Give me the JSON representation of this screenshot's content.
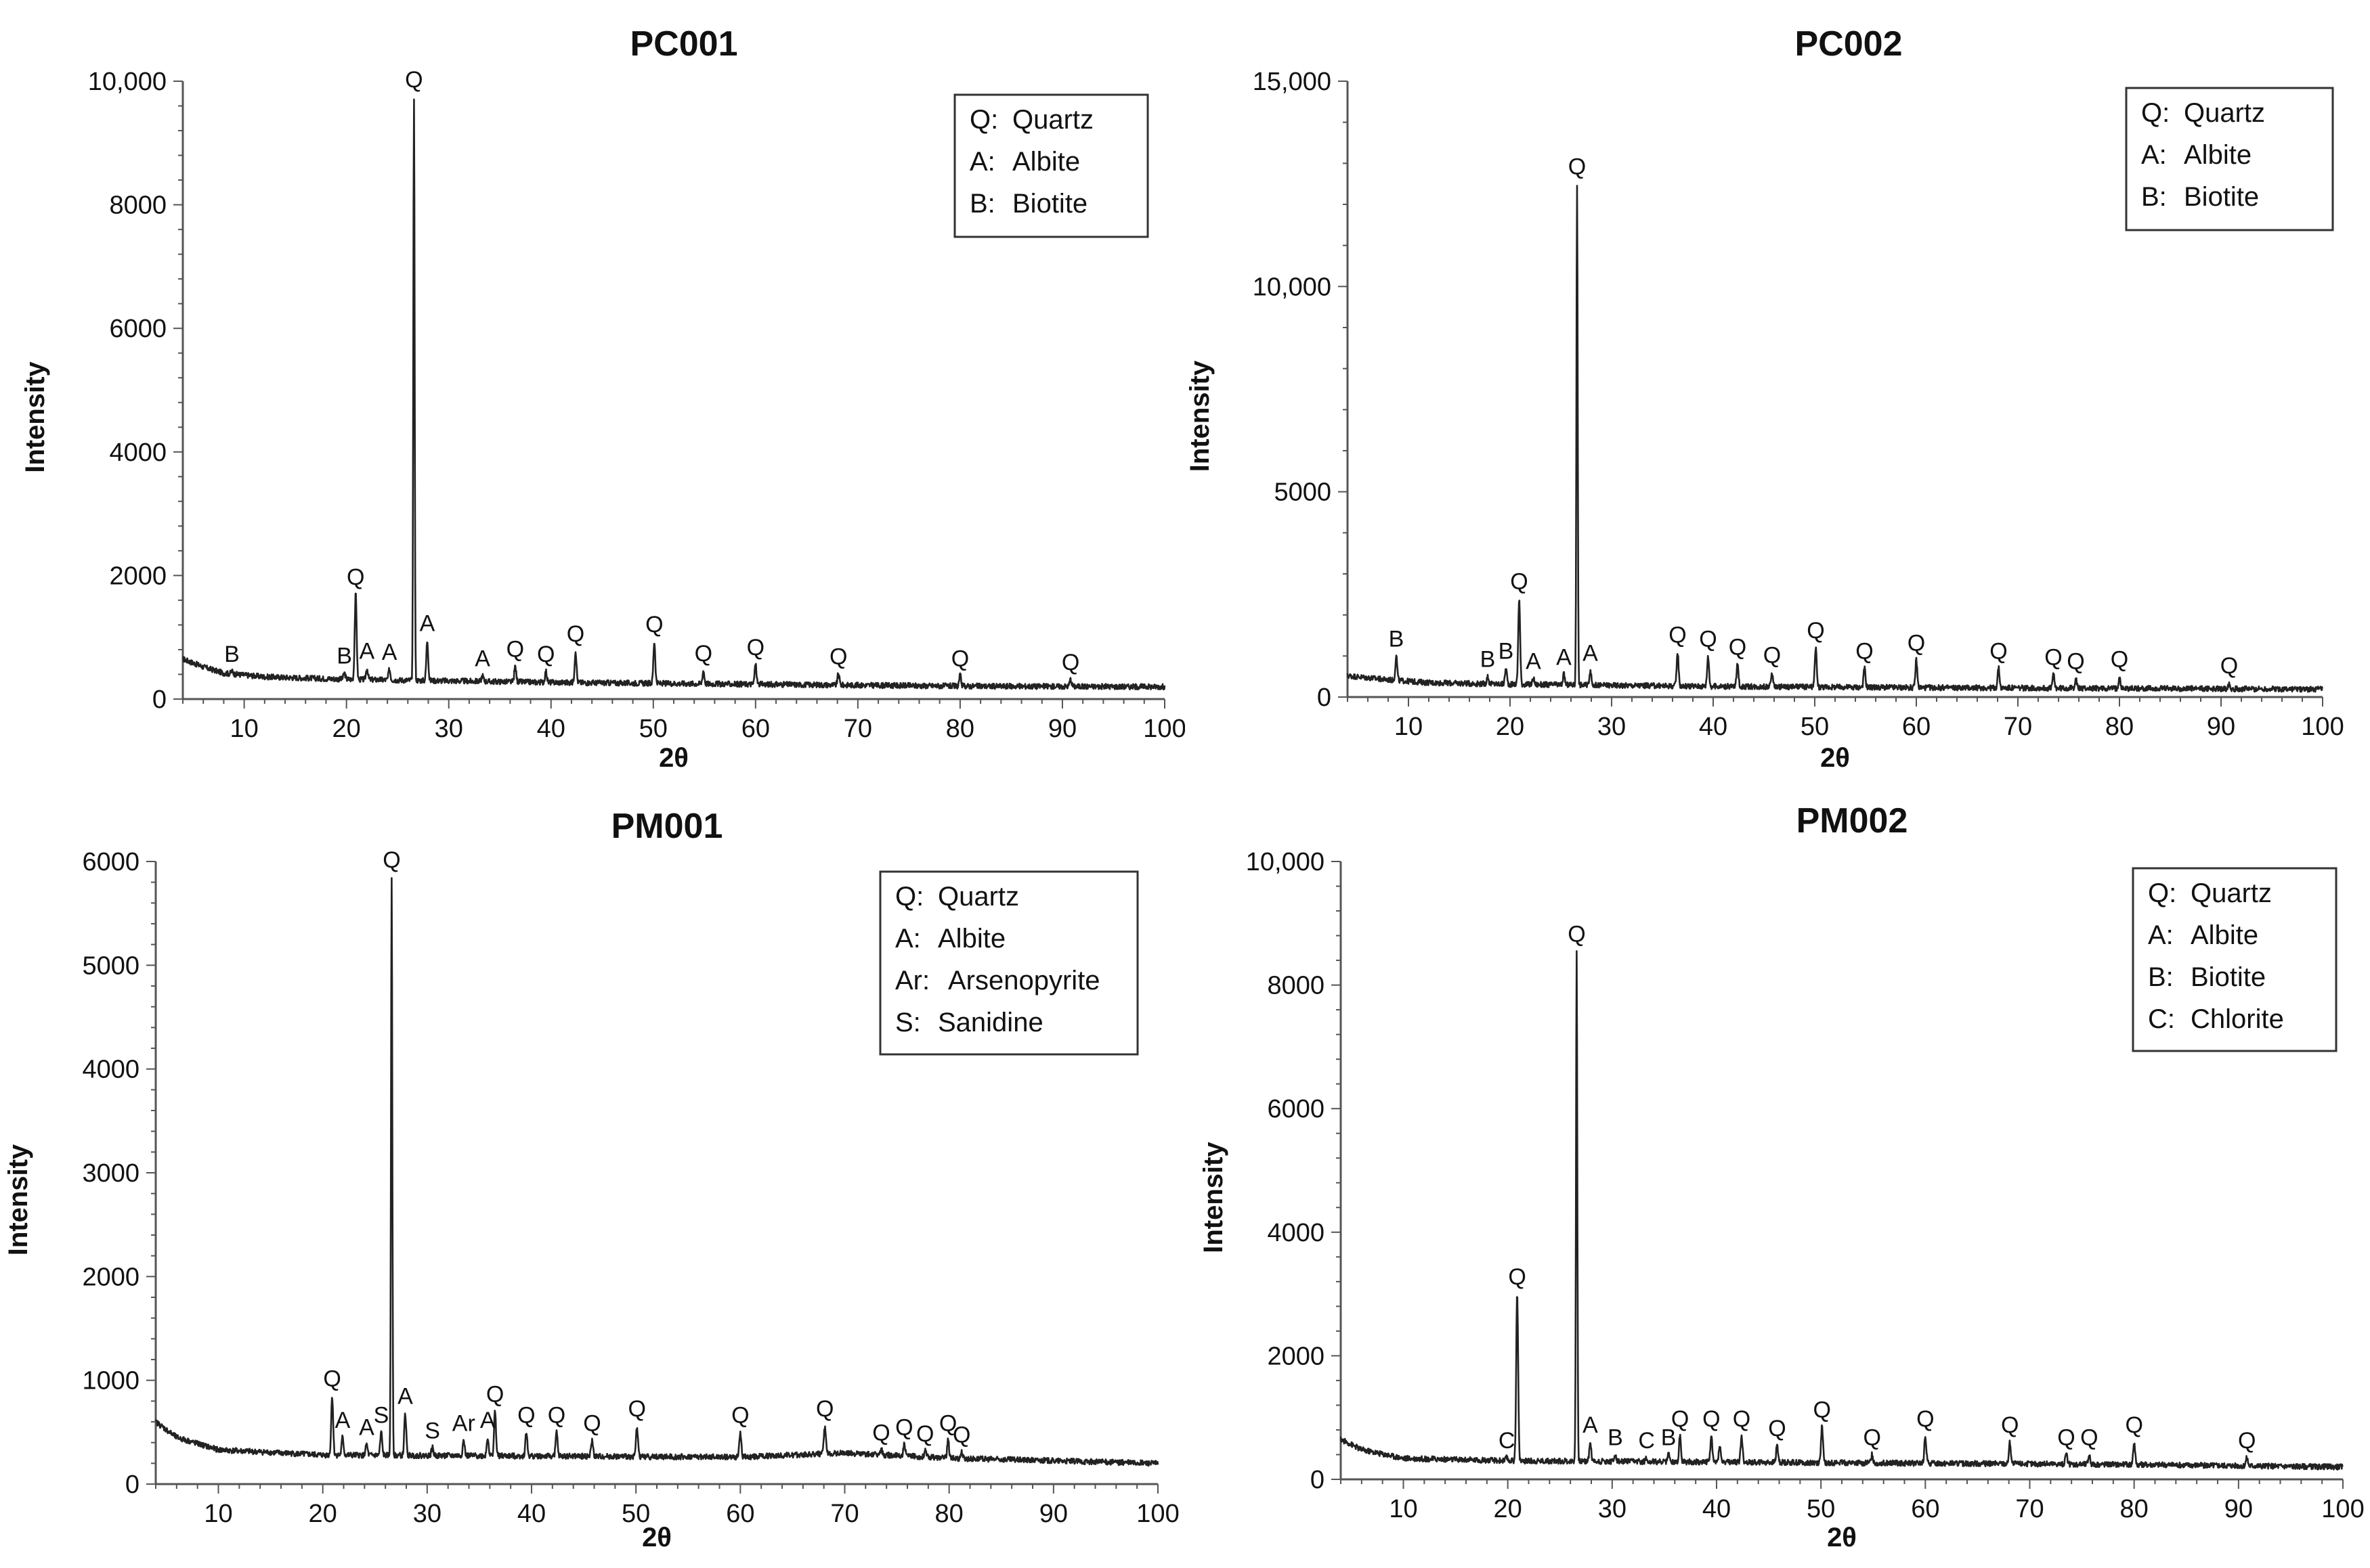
{
  "chart_data": [
    {
      "type": "line",
      "title": "PC001",
      "xlabel": "2θ",
      "ylabel": "Intensity",
      "xlim": [
        4,
        100
      ],
      "ylim": [
        0,
        10000
      ],
      "yticks": [
        0,
        2000,
        4000,
        6000,
        8000,
        10000
      ],
      "ytick_labels": [
        "0",
        "2000",
        "4000",
        "6000",
        "8000",
        "10,000"
      ],
      "xticks": [
        10,
        20,
        30,
        40,
        50,
        60,
        70,
        80,
        90,
        100
      ],
      "xtick_labels": [
        "10",
        "20",
        "30",
        "40",
        "50",
        "60",
        "70",
        "80",
        "90",
        "100"
      ],
      "legend": [
        {
          "code": "Q:",
          "mineral": "Quartz"
        },
        {
          "code": "A:",
          "mineral": "Albite"
        },
        {
          "code": "B:",
          "mineral": "Biotite"
        }
      ],
      "legend_position": "top-right",
      "baseline": [
        [
          4,
          650
        ],
        [
          6,
          520
        ],
        [
          8,
          420
        ],
        [
          12,
          360
        ],
        [
          20,
          320
        ],
        [
          40,
          270
        ],
        [
          60,
          240
        ],
        [
          80,
          210
        ],
        [
          100,
          200
        ]
      ],
      "peaks": [
        {
          "x": 8.8,
          "y": 450,
          "label": "B"
        },
        {
          "x": 19.8,
          "y": 420,
          "label": "B"
        },
        {
          "x": 20.9,
          "y": 1700,
          "label": "Q"
        },
        {
          "x": 22.0,
          "y": 500,
          "label": "A"
        },
        {
          "x": 24.2,
          "y": 480,
          "label": "A"
        },
        {
          "x": 26.6,
          "y": 9750,
          "label": "Q"
        },
        {
          "x": 27.9,
          "y": 950,
          "label": "A"
        },
        {
          "x": 33.3,
          "y": 380,
          "label": "A"
        },
        {
          "x": 36.5,
          "y": 530,
          "label": "Q"
        },
        {
          "x": 39.5,
          "y": 450,
          "label": "Q"
        },
        {
          "x": 42.4,
          "y": 780,
          "label": "Q"
        },
        {
          "x": 50.1,
          "y": 930,
          "label": "Q"
        },
        {
          "x": 54.9,
          "y": 460,
          "label": "Q"
        },
        {
          "x": 60.0,
          "y": 560,
          "label": "Q"
        },
        {
          "x": 68.1,
          "y": 410,
          "label": "Q"
        },
        {
          "x": 80.0,
          "y": 380,
          "label": "Q"
        },
        {
          "x": 90.8,
          "y": 320,
          "label": "Q"
        }
      ]
    },
    {
      "type": "line",
      "title": "PC002",
      "xlabel": "2θ",
      "ylabel": "Intensity",
      "xlim": [
        4,
        100
      ],
      "ylim": [
        0,
        15000
      ],
      "yticks": [
        0,
        5000,
        10000,
        15000
      ],
      "ytick_labels": [
        "0",
        "5000",
        "10,000",
        "15,000"
      ],
      "xticks": [
        10,
        20,
        30,
        40,
        50,
        60,
        70,
        80,
        90,
        100
      ],
      "xtick_labels": [
        "10",
        "20",
        "30",
        "40",
        "50",
        "60",
        "70",
        "80",
        "90",
        "100"
      ],
      "legend": [
        {
          "code": "Q:",
          "mineral": "Quartz"
        },
        {
          "code": "A:",
          "mineral": "Albite"
        },
        {
          "code": "B:",
          "mineral": "Biotite"
        }
      ],
      "legend_position": "top-right",
      "baseline": [
        [
          4,
          520
        ],
        [
          8,
          420
        ],
        [
          12,
          350
        ],
        [
          20,
          310
        ],
        [
          40,
          260
        ],
        [
          60,
          230
        ],
        [
          80,
          210
        ],
        [
          100,
          190
        ]
      ],
      "peaks": [
        {
          "x": 8.8,
          "y": 1000,
          "label": "B"
        },
        {
          "x": 17.8,
          "y": 500,
          "label": "B"
        },
        {
          "x": 19.6,
          "y": 700,
          "label": "B"
        },
        {
          "x": 20.9,
          "y": 2400,
          "label": "Q"
        },
        {
          "x": 22.3,
          "y": 450,
          "label": "A"
        },
        {
          "x": 25.3,
          "y": 550,
          "label": "A"
        },
        {
          "x": 26.6,
          "y": 12500,
          "label": "Q"
        },
        {
          "x": 27.9,
          "y": 650,
          "label": "A"
        },
        {
          "x": 36.5,
          "y": 1100,
          "label": "Q"
        },
        {
          "x": 39.5,
          "y": 1000,
          "label": "Q"
        },
        {
          "x": 42.4,
          "y": 800,
          "label": "Q"
        },
        {
          "x": 45.8,
          "y": 600,
          "label": "Q"
        },
        {
          "x": 50.1,
          "y": 1200,
          "label": "Q"
        },
        {
          "x": 54.9,
          "y": 700,
          "label": "Q"
        },
        {
          "x": 60.0,
          "y": 900,
          "label": "Q"
        },
        {
          "x": 68.1,
          "y": 700,
          "label": "Q"
        },
        {
          "x": 73.5,
          "y": 550,
          "label": "Q"
        },
        {
          "x": 75.7,
          "y": 450,
          "label": "Q"
        },
        {
          "x": 80.0,
          "y": 500,
          "label": "Q"
        },
        {
          "x": 90.8,
          "y": 350,
          "label": "Q"
        }
      ]
    },
    {
      "type": "line",
      "title": "PM001",
      "xlabel": "2θ",
      "ylabel": "Intensity",
      "xlim": [
        4,
        100
      ],
      "ylim": [
        0,
        6000
      ],
      "yticks": [
        0,
        1000,
        2000,
        3000,
        4000,
        5000,
        6000
      ],
      "ytick_labels": [
        "0",
        "1000",
        "2000",
        "3000",
        "4000",
        "5000",
        "6000"
      ],
      "xticks": [
        10,
        20,
        30,
        40,
        50,
        60,
        70,
        80,
        90,
        100
      ],
      "xtick_labels": [
        "10",
        "20",
        "30",
        "40",
        "50",
        "60",
        "70",
        "80",
        "90",
        "100"
      ],
      "legend": [
        {
          "code": "Q:",
          "mineral": "Quartz"
        },
        {
          "code": "A:",
          "mineral": "Albite"
        },
        {
          "code": "Ar:",
          "mineral": "Arsenopyrite"
        },
        {
          "code": "S:",
          "mineral": "Sanidine"
        }
      ],
      "legend_position": "top-right",
      "baseline": [
        [
          4,
          600
        ],
        [
          6,
          450
        ],
        [
          10,
          330
        ],
        [
          20,
          280
        ],
        [
          40,
          270
        ],
        [
          60,
          260
        ],
        [
          70,
          300
        ],
        [
          80,
          250
        ],
        [
          100,
          200
        ]
      ],
      "peaks": [
        {
          "x": 20.9,
          "y": 850,
          "label": "Q"
        },
        {
          "x": 21.9,
          "y": 450,
          "label": "A"
        },
        {
          "x": 24.2,
          "y": 380,
          "label": "A"
        },
        {
          "x": 25.6,
          "y": 500,
          "label": "S"
        },
        {
          "x": 26.6,
          "y": 5850,
          "label": "Q"
        },
        {
          "x": 27.9,
          "y": 680,
          "label": "A"
        },
        {
          "x": 30.5,
          "y": 350,
          "label": "S"
        },
        {
          "x": 33.5,
          "y": 420,
          "label": "Ar"
        },
        {
          "x": 35.8,
          "y": 450,
          "label": "A"
        },
        {
          "x": 36.5,
          "y": 700,
          "label": "Q"
        },
        {
          "x": 39.5,
          "y": 500,
          "label": "Q"
        },
        {
          "x": 42.4,
          "y": 500,
          "label": "Q"
        },
        {
          "x": 45.8,
          "y": 420,
          "label": "Q"
        },
        {
          "x": 50.1,
          "y": 560,
          "label": "Q"
        },
        {
          "x": 60.0,
          "y": 500,
          "label": "Q"
        },
        {
          "x": 68.1,
          "y": 560,
          "label": "Q"
        },
        {
          "x": 73.5,
          "y": 330,
          "label": "Q"
        },
        {
          "x": 75.7,
          "y": 380,
          "label": "Q"
        },
        {
          "x": 77.7,
          "y": 320,
          "label": "Q"
        },
        {
          "x": 79.9,
          "y": 420,
          "label": "Q"
        },
        {
          "x": 81.2,
          "y": 310,
          "label": "Q"
        }
      ]
    },
    {
      "type": "line",
      "title": "PM002",
      "xlabel": "2θ",
      "ylabel": "Intensity",
      "xlim": [
        4,
        100
      ],
      "ylim": [
        0,
        10000
      ],
      "yticks": [
        0,
        2000,
        4000,
        6000,
        8000,
        10000
      ],
      "ytick_labels": [
        "0",
        "2000",
        "4000",
        "6000",
        "8000",
        "10,000"
      ],
      "xticks": [
        10,
        20,
        30,
        40,
        50,
        60,
        70,
        80,
        90,
        100
      ],
      "xtick_labels": [
        "10",
        "20",
        "30",
        "40",
        "50",
        "60",
        "70",
        "80",
        "90",
        "100"
      ],
      "legend": [
        {
          "code": "Q:",
          "mineral": "Quartz"
        },
        {
          "code": "A:",
          "mineral": "Albite"
        },
        {
          "code": "B:",
          "mineral": "Biotite"
        },
        {
          "code": "C:",
          "mineral": "Chlorite"
        }
      ],
      "legend_position": "top-right",
      "baseline": [
        [
          4,
          650
        ],
        [
          6,
          480
        ],
        [
          10,
          340
        ],
        [
          20,
          300
        ],
        [
          40,
          280
        ],
        [
          60,
          260
        ],
        [
          80,
          240
        ],
        [
          100,
          200
        ]
      ],
      "peaks": [
        {
          "x": 19.9,
          "y": 350,
          "label": "C"
        },
        {
          "x": 20.9,
          "y": 3000,
          "label": "Q"
        },
        {
          "x": 26.6,
          "y": 8550,
          "label": "Q"
        },
        {
          "x": 27.9,
          "y": 600,
          "label": "A"
        },
        {
          "x": 30.3,
          "y": 400,
          "label": "B"
        },
        {
          "x": 33.3,
          "y": 350,
          "label": "C"
        },
        {
          "x": 35.4,
          "y": 400,
          "label": "B"
        },
        {
          "x": 36.5,
          "y": 700,
          "label": "Q"
        },
        {
          "x": 39.5,
          "y": 700,
          "label": "Q"
        },
        {
          "x": 40.3,
          "y": 550,
          "label": ""
        },
        {
          "x": 42.4,
          "y": 700,
          "label": "Q"
        },
        {
          "x": 45.8,
          "y": 550,
          "label": "Q"
        },
        {
          "x": 50.1,
          "y": 850,
          "label": "Q"
        },
        {
          "x": 54.9,
          "y": 400,
          "label": "Q"
        },
        {
          "x": 60.0,
          "y": 700,
          "label": "Q"
        },
        {
          "x": 68.1,
          "y": 600,
          "label": "Q"
        },
        {
          "x": 73.5,
          "y": 400,
          "label": "Q"
        },
        {
          "x": 75.7,
          "y": 400,
          "label": "Q"
        },
        {
          "x": 80.0,
          "y": 600,
          "label": "Q"
        },
        {
          "x": 90.8,
          "y": 350,
          "label": "Q"
        }
      ]
    }
  ]
}
